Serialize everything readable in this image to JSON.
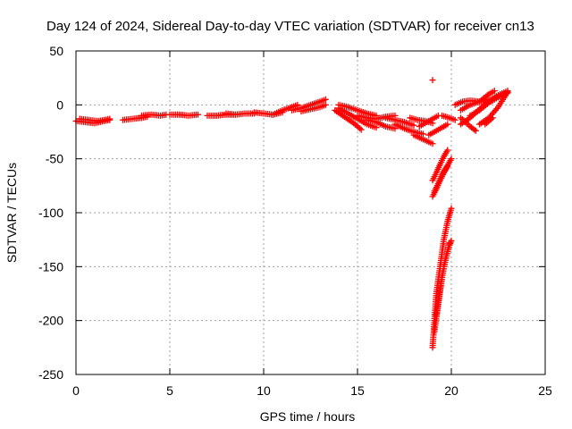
{
  "chart_data": {
    "type": "scatter",
    "title": "Day 124 of 2024, Sidereal Day-to-day VTEC variation (SDTVAR) for receiver cn13",
    "xlabel": "GPS time / hours",
    "ylabel": "SDTVAR / TECUs",
    "xlim": [
      0,
      25
    ],
    "ylim": [
      -250,
      50
    ],
    "xticks": [
      0,
      5,
      10,
      15,
      20,
      25
    ],
    "yticks": [
      -250,
      -200,
      -150,
      -100,
      -50,
      0,
      50
    ],
    "grid": true,
    "marker": "+",
    "marker_color": "#ff0000",
    "series": [
      {
        "name": "SDTVAR",
        "tracks": [
          [
            [
              0.0,
              -15
            ],
            [
              0.5,
              -16
            ],
            [
              1.0,
              -17
            ],
            [
              1.5,
              -15
            ],
            [
              1.8,
              -14
            ]
          ],
          [
            [
              0.2,
              -13
            ],
            [
              0.7,
              -14
            ],
            [
              1.2,
              -15
            ],
            [
              1.8,
              -13
            ]
          ],
          [
            [
              2.5,
              -14
            ],
            [
              3.0,
              -13
            ],
            [
              3.5,
              -12
            ],
            [
              3.8,
              -11
            ]
          ],
          [
            [
              3.5,
              -10
            ],
            [
              4.0,
              -9
            ],
            [
              4.5,
              -10
            ],
            [
              4.8,
              -9
            ]
          ],
          [
            [
              5.0,
              -9
            ],
            [
              5.5,
              -9
            ],
            [
              6.0,
              -10
            ],
            [
              6.5,
              -9
            ]
          ],
          [
            [
              7.0,
              -10
            ],
            [
              7.5,
              -10
            ],
            [
              8.0,
              -9
            ],
            [
              8.5,
              -9
            ]
          ],
          [
            [
              8.0,
              -8
            ],
            [
              8.5,
              -9
            ],
            [
              9.0,
              -8
            ],
            [
              9.5,
              -8
            ]
          ],
          [
            [
              9.5,
              -7
            ],
            [
              10.0,
              -8
            ],
            [
              10.5,
              -9
            ],
            [
              11.0,
              -7
            ]
          ],
          [
            [
              10.5,
              -9
            ],
            [
              11.0,
              -5
            ],
            [
              11.5,
              -2
            ],
            [
              11.8,
              0
            ]
          ],
          [
            [
              11.5,
              -5
            ],
            [
              12.0,
              -3
            ],
            [
              12.5,
              0
            ],
            [
              13.0,
              3
            ],
            [
              13.3,
              5
            ]
          ],
          [
            [
              12.0,
              -6
            ],
            [
              12.5,
              -4
            ],
            [
              13.0,
              -2
            ],
            [
              13.3,
              0
            ]
          ],
          [
            [
              14.0,
              0
            ],
            [
              14.5,
              -2
            ],
            [
              15.0,
              -5
            ],
            [
              15.5,
              -8
            ],
            [
              16.0,
              -10
            ]
          ],
          [
            [
              14.0,
              -3
            ],
            [
              14.5,
              -8
            ],
            [
              15.0,
              -13
            ],
            [
              15.5,
              -18
            ],
            [
              16.0,
              -21
            ]
          ],
          [
            [
              13.8,
              -5
            ],
            [
              14.3,
              -11
            ],
            [
              14.8,
              -17
            ],
            [
              15.2,
              -23
            ]
          ],
          [
            [
              15.0,
              -10
            ],
            [
              15.5,
              -12
            ],
            [
              16.0,
              -13
            ],
            [
              16.5,
              -11
            ],
            [
              17.0,
              -10
            ]
          ],
          [
            [
              15.5,
              -14
            ],
            [
              16.0,
              -16
            ],
            [
              16.5,
              -20
            ],
            [
              17.0,
              -22
            ]
          ],
          [
            [
              16.5,
              -12
            ],
            [
              17.0,
              -14
            ],
            [
              17.5,
              -16
            ],
            [
              18.0,
              -19
            ]
          ],
          [
            [
              17.0,
              -18
            ],
            [
              17.5,
              -22
            ],
            [
              18.0,
              -25
            ],
            [
              18.5,
              -27
            ]
          ],
          [
            [
              17.8,
              -12
            ],
            [
              18.2,
              -14
            ],
            [
              18.6,
              -15
            ],
            [
              19.0,
              -17
            ]
          ],
          [
            [
              18.0,
              -28
            ],
            [
              18.5,
              -32
            ],
            [
              19.0,
              -36
            ]
          ],
          [
            [
              18.3,
              -20
            ],
            [
              18.6,
              -17
            ],
            [
              19.0,
              -13
            ],
            [
              19.3,
              -10
            ]
          ],
          [
            [
              18.8,
              -28
            ],
            [
              19.2,
              -24
            ],
            [
              19.5,
              -21
            ],
            [
              19.8,
              -18
            ]
          ],
          [
            [
              19.0,
              23
            ]
          ],
          [
            [
              19.5,
              -10
            ],
            [
              19.9,
              -12
            ],
            [
              20.2,
              -14
            ]
          ],
          [
            [
              19.0,
              -85
            ],
            [
              19.2,
              -78
            ],
            [
              19.4,
              -70
            ],
            [
              19.6,
              -63
            ],
            [
              19.8,
              -57
            ]
          ],
          [
            [
              19.1,
              -80
            ],
            [
              19.3,
              -73
            ],
            [
              19.5,
              -65
            ],
            [
              19.8,
              -56
            ],
            [
              20.0,
              -50
            ]
          ],
          [
            [
              19.0,
              -70
            ],
            [
              19.2,
              -63
            ],
            [
              19.4,
              -55
            ],
            [
              19.6,
              -48
            ],
            [
              19.8,
              -42
            ]
          ],
          [
            [
              19.0,
              -225
            ],
            [
              19.1,
              -200
            ],
            [
              19.2,
              -175
            ],
            [
              19.4,
              -150
            ],
            [
              19.6,
              -125
            ],
            [
              19.8,
              -108
            ],
            [
              20.0,
              -96
            ]
          ],
          [
            [
              19.1,
              -210
            ],
            [
              19.3,
              -185
            ],
            [
              19.5,
              -160
            ],
            [
              19.7,
              -142
            ],
            [
              19.9,
              -128
            ]
          ],
          [
            [
              19.2,
              -195
            ],
            [
              19.4,
              -172
            ],
            [
              19.6,
              -150
            ],
            [
              19.9,
              -130
            ],
            [
              20.0,
              -126
            ]
          ],
          [
            [
              20.2,
              0
            ],
            [
              20.6,
              3
            ],
            [
              21.0,
              4
            ],
            [
              21.5,
              3
            ],
            [
              22.0,
              5
            ]
          ],
          [
            [
              20.5,
              -5
            ],
            [
              21.0,
              0
            ],
            [
              21.5,
              3
            ],
            [
              22.0,
              10
            ],
            [
              22.3,
              13
            ]
          ],
          [
            [
              20.5,
              -18
            ],
            [
              21.0,
              -12
            ],
            [
              21.5,
              -4
            ],
            [
              22.0,
              4
            ],
            [
              22.5,
              9
            ],
            [
              23.0,
              13
            ]
          ],
          [
            [
              21.0,
              -10
            ],
            [
              21.5,
              -5
            ],
            [
              22.0,
              2
            ],
            [
              22.5,
              7
            ],
            [
              23.0,
              11
            ]
          ],
          [
            [
              21.5,
              -18
            ],
            [
              22.0,
              -12
            ],
            [
              22.5,
              -2
            ],
            [
              23.0,
              12
            ]
          ],
          [
            [
              20.5,
              -12
            ],
            [
              21.0,
              -20
            ],
            [
              21.3,
              -24
            ]
          ],
          [
            [
              21.8,
              -18
            ],
            [
              22.2,
              -12
            ]
          ]
        ]
      }
    ]
  }
}
